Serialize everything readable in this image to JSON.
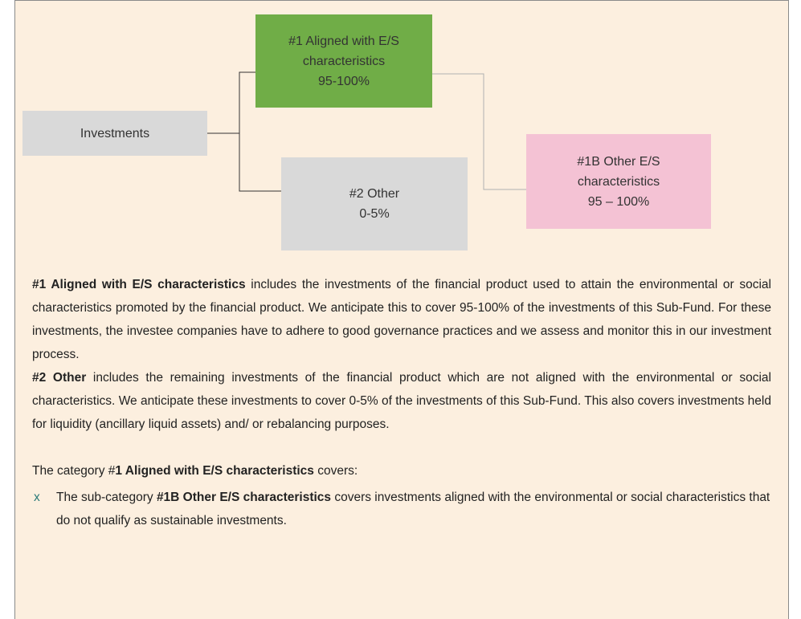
{
  "nodes": [
    {
      "lines": [
        "Investments"
      ]
    },
    {
      "lines": [
        "#1 Aligned with E/S",
        "characteristics",
        "95-100%"
      ]
    },
    {
      "lines": [
        "#2 Other",
        "0-5%"
      ]
    },
    {
      "lines": [
        "#1B Other E/S",
        "characteristics",
        "95 – 100%"
      ]
    }
  ],
  "paragraphs": [
    {
      "parts": [
        {
          "text": "#1 Aligned with E/S characteristics",
          "bold": true
        },
        {
          "text": " includes the investments of the financial product used to attain the environmental or social characteristics promoted by the financial product. We anticipate this to cover 95-100% of the investments of this Sub-Fund. For these investments, the investee companies have to adhere to good governance practices and we assess and monitor this in our investment process."
        }
      ]
    },
    {
      "parts": [
        {
          "text": "#2 Other",
          "bold": true
        },
        {
          "text": " includes the remaining investments of the financial product which are not aligned with the environmental or social characteristics. We anticipate these investments to cover 0-5% of the investments of this Sub-Fund. This also covers investments held for liquidity (ancillary liquid assets) and/ or rebalancing purposes."
        }
      ]
    },
    {
      "parts": [
        {
          "text": "The category #"
        },
        {
          "text": "1 Aligned with E/S characteristics",
          "bold": true
        },
        {
          "text": " covers:"
        }
      ]
    }
  ],
  "bullet": {
    "marker": "x",
    "parts": [
      {
        "text": "The sub-category "
      },
      {
        "text": "#1B Other E/S characteristics",
        "bold": true
      },
      {
        "text": " covers investments aligned with the environmental or social characteristics that do not qualify as sustainable investments."
      }
    ]
  }
}
